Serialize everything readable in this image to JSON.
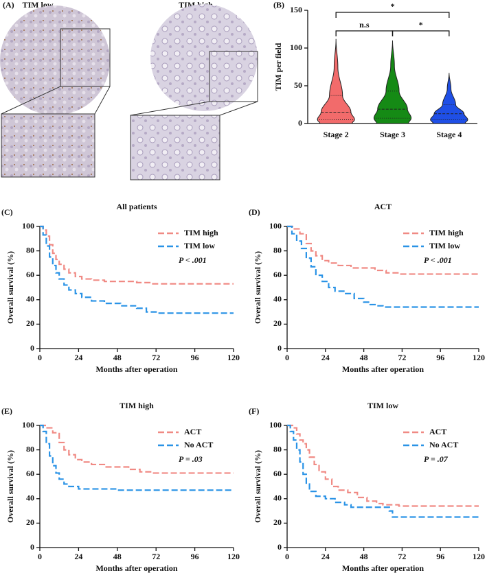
{
  "image_panel": {
    "label": "(A)",
    "captions": [
      "TIM low",
      "TIM high"
    ]
  },
  "chart_data": [
    {
      "type": "violin",
      "panel_label": "(B)",
      "ylabel": "TIM per field",
      "categories": [
        "Stage 2",
        "Stage 3",
        "Stage 4"
      ],
      "colors": [
        "#f26b6b",
        "#158a15",
        "#1f4fe6"
      ],
      "min": [
        0,
        0,
        0
      ],
      "q1": [
        5,
        7,
        5
      ],
      "median": [
        15,
        19,
        13
      ],
      "q3": [
        37,
        43,
        25
      ],
      "max": [
        112,
        110,
        67
      ],
      "ylim": [
        0,
        150
      ],
      "yticks": [
        0,
        50,
        100,
        150
      ],
      "comparisons": [
        {
          "label": "n.s",
          "pair": [
            "Stage 2",
            "Stage 3"
          ]
        },
        {
          "label": "*",
          "pair": [
            "Stage 3",
            "Stage 4"
          ]
        },
        {
          "label": "*",
          "pair": [
            "Stage 2",
            "Stage 4"
          ]
        }
      ]
    },
    {
      "type": "km",
      "panel_label": "(C)",
      "title": "All patients",
      "annotation": "P < .001",
      "xlabel": "Months after operation",
      "ylabel": "Overall survival (%)",
      "xlim": [
        0,
        120
      ],
      "xticks": [
        0,
        24,
        48,
        72,
        96,
        120
      ],
      "ylim": [
        0,
        100
      ],
      "yticks": [
        0,
        20,
        40,
        60,
        80,
        100
      ],
      "series": [
        {
          "name": "TIM high",
          "color": "#f08a84",
          "x": [
            0,
            2,
            4,
            6,
            8,
            10,
            12,
            15,
            18,
            22,
            26,
            32,
            40,
            60,
            70,
            120
          ],
          "values": [
            100,
            97,
            92,
            85,
            78,
            73,
            69,
            65,
            62,
            59,
            57,
            56,
            55,
            54,
            53,
            53
          ]
        },
        {
          "name": "TIM low",
          "color": "#2a93e6",
          "x": [
            0,
            2,
            4,
            6,
            8,
            10,
            12,
            15,
            18,
            22,
            26,
            32,
            40,
            50,
            60,
            66,
            72,
            120
          ],
          "values": [
            100,
            93,
            84,
            75,
            68,
            62,
            57,
            52,
            48,
            45,
            42,
            39,
            37,
            35,
            33,
            30,
            29,
            29
          ]
        }
      ]
    },
    {
      "type": "km",
      "panel_label": "(D)",
      "title": "ACT",
      "annotation": "P < .001",
      "xlabel": "Months after operation",
      "ylabel": "Overall survival (%)",
      "xlim": [
        0,
        120
      ],
      "xticks": [
        0,
        24,
        48,
        72,
        96,
        120
      ],
      "ylim": [
        0,
        100
      ],
      "yticks": [
        0,
        20,
        40,
        60,
        80,
        100
      ],
      "series": [
        {
          "name": "TIM high",
          "color": "#f08a84",
          "x": [
            0,
            4,
            8,
            12,
            15,
            18,
            22,
            26,
            32,
            40,
            55,
            62,
            70,
            120
          ],
          "values": [
            100,
            98,
            94,
            86,
            80,
            76,
            72,
            70,
            68,
            66,
            64,
            62,
            61,
            61
          ]
        },
        {
          "name": "TIM low",
          "color": "#2a93e6",
          "x": [
            0,
            3,
            6,
            9,
            12,
            15,
            18,
            22,
            26,
            30,
            36,
            42,
            48,
            52,
            56,
            60,
            120
          ],
          "values": [
            100,
            94,
            88,
            82,
            74,
            67,
            60,
            55,
            50,
            47,
            45,
            41,
            38,
            36,
            35,
            34,
            34
          ]
        }
      ]
    },
    {
      "type": "km",
      "panel_label": "(E)",
      "title": "TIM high",
      "annotation": "P = .03",
      "xlabel": "Months after operation",
      "ylabel": "Overall survival (%)",
      "xlim": [
        0,
        120
      ],
      "xticks": [
        0,
        24,
        48,
        72,
        96,
        120
      ],
      "ylim": [
        0,
        100
      ],
      "yticks": [
        0,
        20,
        40,
        60,
        80,
        100
      ],
      "series": [
        {
          "name": "ACT",
          "color": "#f08a84",
          "x": [
            0,
            4,
            8,
            12,
            15,
            18,
            22,
            26,
            32,
            40,
            55,
            62,
            70,
            120
          ],
          "values": [
            100,
            98,
            94,
            86,
            80,
            76,
            72,
            70,
            68,
            66,
            64,
            62,
            61,
            61
          ]
        },
        {
          "name": "No ACT",
          "color": "#2a93e6",
          "x": [
            0,
            2,
            4,
            6,
            8,
            10,
            12,
            15,
            18,
            24,
            48,
            120
          ],
          "values": [
            100,
            95,
            85,
            75,
            67,
            61,
            56,
            52,
            50,
            48,
            47,
            47
          ]
        }
      ]
    },
    {
      "type": "km",
      "panel_label": "(F)",
      "title": "TIM low",
      "annotation": "P = .07",
      "xlabel": "Months after operation",
      "ylabel": "Overall survival (%)",
      "xlim": [
        0,
        120
      ],
      "xticks": [
        0,
        24,
        48,
        72,
        96,
        120
      ],
      "ylim": [
        0,
        100
      ],
      "yticks": [
        0,
        20,
        40,
        60,
        80,
        100
      ],
      "series": [
        {
          "name": "ACT",
          "color": "#f08a84",
          "x": [
            0,
            4,
            6,
            8,
            10,
            12,
            14,
            17,
            20,
            24,
            28,
            32,
            38,
            44,
            50,
            56,
            60,
            70,
            120
          ],
          "values": [
            100,
            98,
            93,
            88,
            85,
            80,
            74,
            68,
            62,
            56,
            50,
            47,
            45,
            41,
            38,
            36,
            35,
            34,
            34
          ]
        },
        {
          "name": "No ACT",
          "color": "#2a93e6",
          "x": [
            0,
            2,
            4,
            6,
            8,
            10,
            12,
            14,
            18,
            24,
            30,
            36,
            40,
            60,
            64,
            66,
            120
          ],
          "values": [
            100,
            95,
            88,
            80,
            70,
            60,
            52,
            46,
            42,
            40,
            37,
            35,
            33,
            33,
            30,
            25,
            25
          ]
        }
      ]
    }
  ]
}
